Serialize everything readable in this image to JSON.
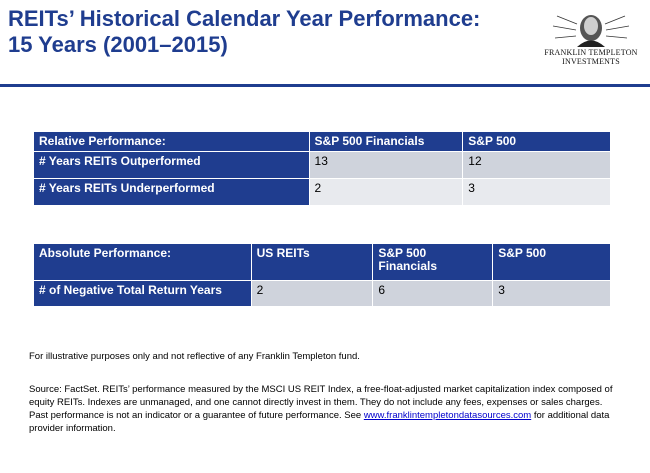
{
  "title": {
    "line1": "REITs’ Historical Calendar Year Performance:",
    "line2": "15 Years (2001–2015)"
  },
  "logo": {
    "line1": "FRANKLIN TEMPLETON",
    "line2": "INVESTMENTS",
    "icon": "benjamin-franklin-portrait-icon"
  },
  "colors": {
    "header": "#1f3d8f",
    "cell_dark": "#cfd3dc",
    "cell_light": "#e8eaee"
  },
  "relative_table": {
    "headers": [
      "Relative Performance:",
      "S&P 500 Financials",
      "S&P 500"
    ],
    "rows": [
      {
        "label": "# Years REITs Outperformed",
        "values": [
          "13",
          "12"
        ]
      },
      {
        "label": "# Years REITs Underperformed",
        "values": [
          "2",
          "3"
        ]
      }
    ]
  },
  "absolute_table": {
    "headers": [
      "Absolute Performance:",
      "US REITs",
      "S&P 500 Financials",
      "S&P 500"
    ],
    "rows": [
      {
        "label": "# of Negative Total Return Years",
        "values": [
          "2",
          "6",
          "3"
        ]
      }
    ]
  },
  "notes": {
    "illustrative": "For illustrative purposes only and not reflective of any Franklin Templeton fund.",
    "source": "Source: FactSet. REITs’ performance measured by the MSCI US REIT Index, a free-float-adjusted market capitalization index composed of equity REITs. Indexes are unmanaged, and one cannot directly invest in them. They do not include any fees, expenses or sales charges. Past performance is not an indicator or a guarantee of future performance. See",
    "link": "www.franklintempletondatasources.com",
    "suffix": " for additional data provider information."
  }
}
